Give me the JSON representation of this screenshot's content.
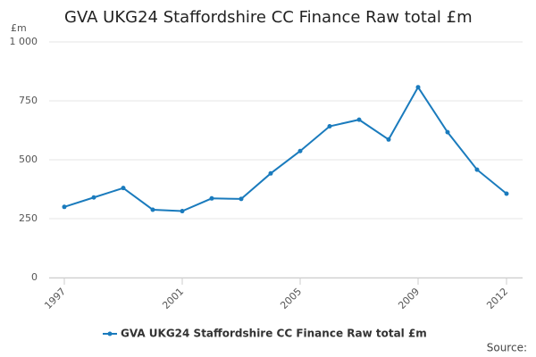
{
  "chart_data": {
    "type": "line",
    "title": "GVA UKG24 Staffordshire CC Finance Raw total £m",
    "y_label": "£m",
    "source": "Source:",
    "x": [
      1997,
      1998,
      1999,
      2000,
      2001,
      2002,
      2003,
      2004,
      2005,
      2006,
      2007,
      2008,
      2009,
      2010,
      2011,
      2012
    ],
    "series": [
      {
        "name": "GVA UKG24 Staffordshire CC Finance Raw total £m",
        "color": "#1a7bbd",
        "values": [
          300,
          340,
          380,
          288,
          282,
          336,
          334,
          442,
          537,
          642,
          670,
          586,
          808,
          617,
          458,
          356
        ]
      }
    ],
    "xlim": [
      1997,
      2012
    ],
    "xticks": [
      1997,
      2001,
      2005,
      2009,
      2012
    ],
    "ylim": [
      0,
      1000
    ],
    "yticks": [
      0,
      250,
      500,
      750,
      {
        "value": 1000,
        "label": "1 000"
      }
    ],
    "grid": true,
    "legend": "bottom"
  }
}
